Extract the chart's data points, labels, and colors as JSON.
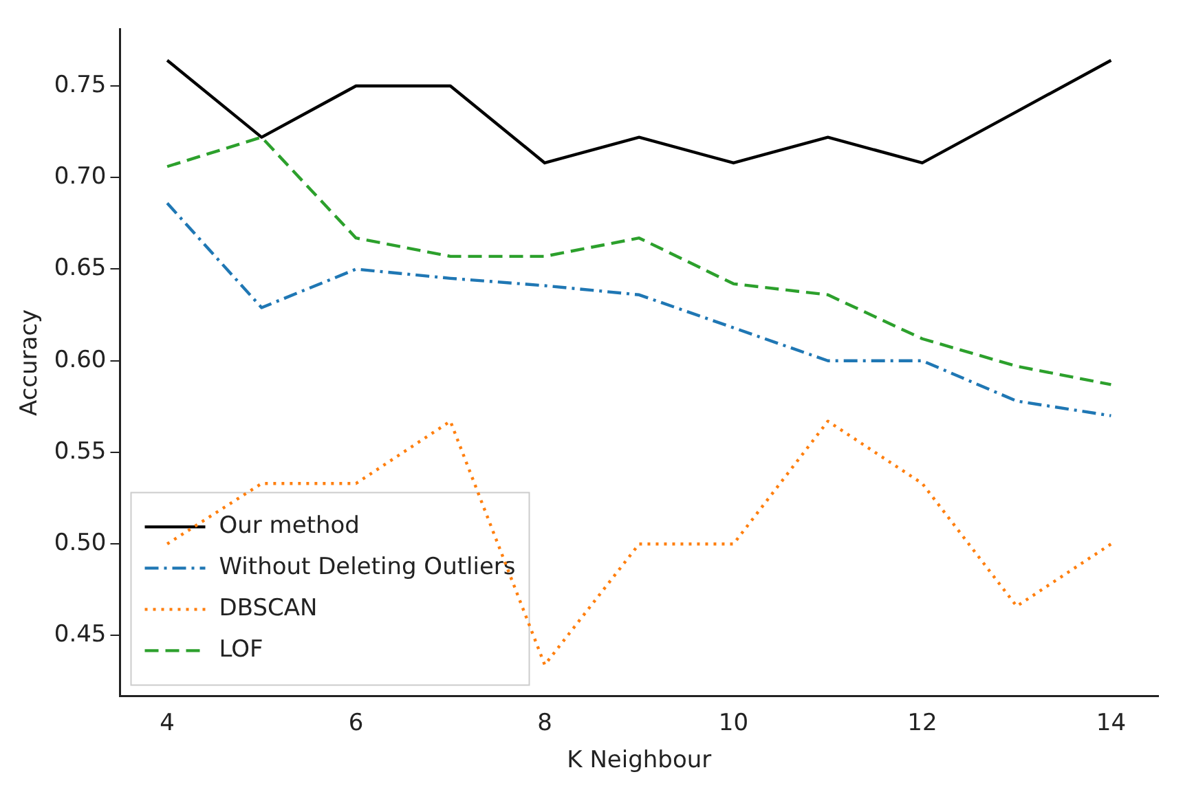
{
  "chart_data": {
    "type": "line",
    "xlabel": "K Neighbour",
    "ylabel": "Accuracy",
    "x": [
      4,
      5,
      6,
      7,
      8,
      9,
      10,
      11,
      12,
      13,
      14
    ],
    "series": [
      {
        "name": "Our method",
        "color": "#000000",
        "line_style": "solid",
        "values": [
          0.764,
          0.722,
          0.75,
          0.75,
          0.708,
          0.722,
          0.708,
          0.722,
          0.708,
          0.736,
          0.764
        ]
      },
      {
        "name": "Without Deleting Outliers",
        "color": "#1f77b4",
        "line_style": "dashdot",
        "values": [
          0.686,
          0.629,
          0.65,
          0.645,
          0.641,
          0.636,
          0.618,
          0.6,
          0.6,
          0.578,
          0.57
        ]
      },
      {
        "name": "DBSCAN",
        "color": "#ff7f0e",
        "line_style": "dotted",
        "values": [
          0.5,
          0.533,
          0.533,
          0.567,
          0.434,
          0.5,
          0.5,
          0.567,
          0.533,
          0.466,
          0.5
        ]
      },
      {
        "name": "LOF",
        "color": "#2ca02c",
        "line_style": "dashed",
        "values": [
          0.706,
          0.722,
          0.667,
          0.657,
          0.657,
          0.667,
          0.642,
          0.636,
          0.612,
          0.597,
          0.587
        ]
      }
    ],
    "xlim": [
      3.5,
      14.5
    ],
    "ylim": [
      0.417,
      0.781
    ],
    "xticks": [
      4,
      6,
      8,
      10,
      12,
      14
    ],
    "yticks": [
      0.45,
      {
        "value": 0.5,
        "label": "0.50"
      },
      0.55,
      {
        "value": 0.6,
        "label": "0.60"
      },
      0.65,
      {
        "value": 0.7,
        "label": "0.70"
      },
      0.75
    ],
    "grid": false,
    "legend": "bottom left",
    "marker": "none"
  }
}
